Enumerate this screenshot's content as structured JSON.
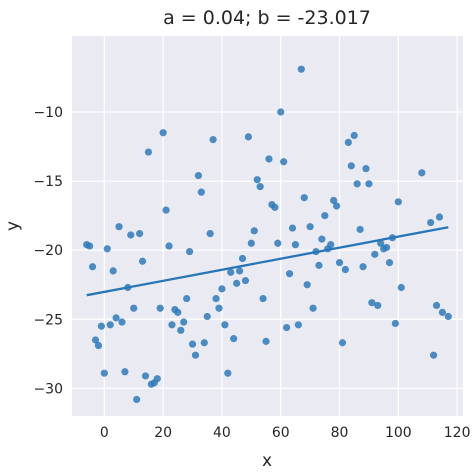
{
  "chart_data": {
    "type": "scatter",
    "title": "a = 0.04; b = -23.017",
    "xlabel": "x",
    "ylabel": "y",
    "xlim": [
      -11,
      122
    ],
    "ylim": [
      -32,
      -4.5
    ],
    "xticks": [
      0,
      20,
      40,
      60,
      80,
      100,
      120
    ],
    "xtick_labels": [
      "0",
      "20",
      "40",
      "60",
      "80",
      "100",
      "120"
    ],
    "yticks": [
      -30,
      -25,
      -20,
      -15,
      -10
    ],
    "ytick_labels": [
      "−30",
      "−25",
      "−20",
      "−15",
      "−10"
    ],
    "grid": true,
    "background": "#eaeaf2",
    "point_color": "#2f7ab8",
    "line_color": "#2676b8",
    "points": [
      {
        "x": -6,
        "y": -19.6
      },
      {
        "x": -5,
        "y": -19.7
      },
      {
        "x": -4,
        "y": -21.2
      },
      {
        "x": -3,
        "y": -26.5
      },
      {
        "x": -2,
        "y": -26.9
      },
      {
        "x": -1,
        "y": -25.5
      },
      {
        "x": 0,
        "y": -28.9
      },
      {
        "x": 1,
        "y": -19.9
      },
      {
        "x": 2,
        "y": -25.4
      },
      {
        "x": 3,
        "y": -21.5
      },
      {
        "x": 4,
        "y": -24.9
      },
      {
        "x": 5,
        "y": -18.3
      },
      {
        "x": 6,
        "y": -25.2
      },
      {
        "x": 7,
        "y": -28.8
      },
      {
        "x": 8,
        "y": -22.7
      },
      {
        "x": 9,
        "y": -18.9
      },
      {
        "x": 10,
        "y": -24.2
      },
      {
        "x": 11,
        "y": -30.8
      },
      {
        "x": 12,
        "y": -18.8
      },
      {
        "x": 13,
        "y": -20.8
      },
      {
        "x": 14,
        "y": -29.1
      },
      {
        "x": 15,
        "y": -12.9
      },
      {
        "x": 16,
        "y": -29.7
      },
      {
        "x": 17,
        "y": -29.6
      },
      {
        "x": 18,
        "y": -29.3
      },
      {
        "x": 19,
        "y": -24.2
      },
      {
        "x": 20,
        "y": -11.5
      },
      {
        "x": 21,
        "y": -17.1
      },
      {
        "x": 22,
        "y": -19.7
      },
      {
        "x": 23,
        "y": -25.4
      },
      {
        "x": 24,
        "y": -24.3
      },
      {
        "x": 25,
        "y": -24.5
      },
      {
        "x": 26,
        "y": -25.8
      },
      {
        "x": 27,
        "y": -25.2
      },
      {
        "x": 28,
        "y": -23.5
      },
      {
        "x": 29,
        "y": -20.1
      },
      {
        "x": 30,
        "y": -26.8
      },
      {
        "x": 31,
        "y": -27.6
      },
      {
        "x": 32,
        "y": -14.6
      },
      {
        "x": 33,
        "y": -15.8
      },
      {
        "x": 34,
        "y": -26.7
      },
      {
        "x": 35,
        "y": -24.8
      },
      {
        "x": 36,
        "y": -18.8
      },
      {
        "x": 37,
        "y": -12.0
      },
      {
        "x": 38,
        "y": -23.5
      },
      {
        "x": 39,
        "y": -24.2
      },
      {
        "x": 40,
        "y": -22.8
      },
      {
        "x": 41,
        "y": -25.4
      },
      {
        "x": 42,
        "y": -28.9
      },
      {
        "x": 43,
        "y": -21.6
      },
      {
        "x": 44,
        "y": -26.4
      },
      {
        "x": 45,
        "y": -22.4
      },
      {
        "x": 46,
        "y": -21.5
      },
      {
        "x": 47,
        "y": -20.6
      },
      {
        "x": 48,
        "y": -22.2
      },
      {
        "x": 49,
        "y": -11.8
      },
      {
        "x": 50,
        "y": -19.5
      },
      {
        "x": 51,
        "y": -18.6
      },
      {
        "x": 52,
        "y": -14.9
      },
      {
        "x": 53,
        "y": -15.4
      },
      {
        "x": 54,
        "y": -23.5
      },
      {
        "x": 55,
        "y": -26.6
      },
      {
        "x": 56,
        "y": -13.4
      },
      {
        "x": 57,
        "y": -16.7
      },
      {
        "x": 58,
        "y": -16.9
      },
      {
        "x": 59,
        "y": -19.5
      },
      {
        "x": 60,
        "y": -10.0
      },
      {
        "x": 61,
        "y": -13.6
      },
      {
        "x": 62,
        "y": -25.6
      },
      {
        "x": 63,
        "y": -21.7
      },
      {
        "x": 64,
        "y": -18.4
      },
      {
        "x": 65,
        "y": -19.6
      },
      {
        "x": 66,
        "y": -25.4
      },
      {
        "x": 67,
        "y": -6.9
      },
      {
        "x": 68,
        "y": -16.2
      },
      {
        "x": 69,
        "y": -22.5
      },
      {
        "x": 70,
        "y": -18.3
      },
      {
        "x": 71,
        "y": -24.2
      },
      {
        "x": 72,
        "y": -20.1
      },
      {
        "x": 73,
        "y": -21.1
      },
      {
        "x": 74,
        "y": -19.2
      },
      {
        "x": 75,
        "y": -17.5
      },
      {
        "x": 76,
        "y": -19.9
      },
      {
        "x": 77,
        "y": -19.6
      },
      {
        "x": 78,
        "y": -16.4
      },
      {
        "x": 79,
        "y": -16.8
      },
      {
        "x": 80,
        "y": -20.9
      },
      {
        "x": 81,
        "y": -26.7
      },
      {
        "x": 82,
        "y": -21.4
      },
      {
        "x": 83,
        "y": -12.2
      },
      {
        "x": 84,
        "y": -13.9
      },
      {
        "x": 85,
        "y": -11.7
      },
      {
        "x": 86,
        "y": -15.2
      },
      {
        "x": 87,
        "y": -18.5
      },
      {
        "x": 88,
        "y": -21.2
      },
      {
        "x": 89,
        "y": -14.1
      },
      {
        "x": 90,
        "y": -15.2
      },
      {
        "x": 91,
        "y": -23.8
      },
      {
        "x": 92,
        "y": -20.3
      },
      {
        "x": 93,
        "y": -24.0
      },
      {
        "x": 94,
        "y": -19.5
      },
      {
        "x": 95,
        "y": -19.9
      },
      {
        "x": 96,
        "y": -19.8
      },
      {
        "x": 97,
        "y": -20.9
      },
      {
        "x": 98,
        "y": -19.1
      },
      {
        "x": 99,
        "y": -25.3
      },
      {
        "x": 100,
        "y": -16.5
      },
      {
        "x": 101,
        "y": -22.7
      },
      {
        "x": 108,
        "y": -14.4
      },
      {
        "x": 111,
        "y": -18.0
      },
      {
        "x": 112,
        "y": -27.6
      },
      {
        "x": 113,
        "y": -24.0
      },
      {
        "x": 114,
        "y": -17.6
      },
      {
        "x": 115,
        "y": -24.5
      },
      {
        "x": 117,
        "y": -24.8
      }
    ],
    "regression": {
      "slope": 0.04,
      "intercept": -23.017,
      "x_range": [
        -6,
        117
      ]
    }
  }
}
